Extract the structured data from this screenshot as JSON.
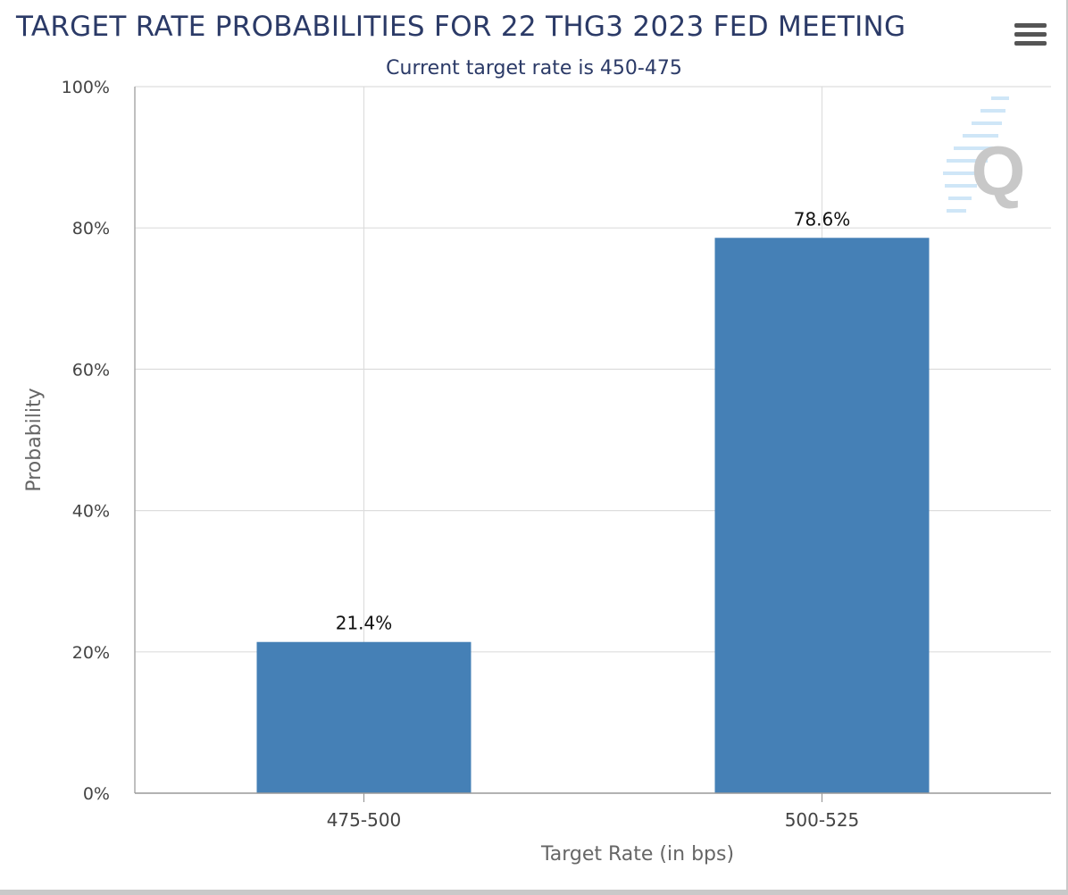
{
  "header": {
    "title": "TARGET RATE PROBABILITIES FOR 22 THG3 2023 FED MEETING",
    "menu_icon": "hamburger-menu-icon"
  },
  "chart_data": {
    "type": "bar",
    "title": "TARGET RATE PROBABILITIES FOR 22 THG3 2023 FED MEETING",
    "subtitle": "Current target rate is 450-475",
    "categories": [
      "475-500",
      "500-525"
    ],
    "values": [
      21.4,
      78.6
    ],
    "data_labels": [
      "21.4%",
      "78.6%"
    ],
    "xlabel": "Target Rate (in bps)",
    "ylabel": "Probability",
    "ylim": [
      0,
      100
    ],
    "yticks": [
      0,
      20,
      40,
      60,
      80,
      100
    ],
    "ytick_labels": [
      "0%",
      "20%",
      "40%",
      "60%",
      "80%",
      "100%"
    ],
    "grid": true,
    "bar_color": "#4580b6",
    "grid_color": "#dddddd",
    "title_color": "#2b3a67"
  },
  "watermark": {
    "icon": "q-logo-icon",
    "text": "Q"
  }
}
